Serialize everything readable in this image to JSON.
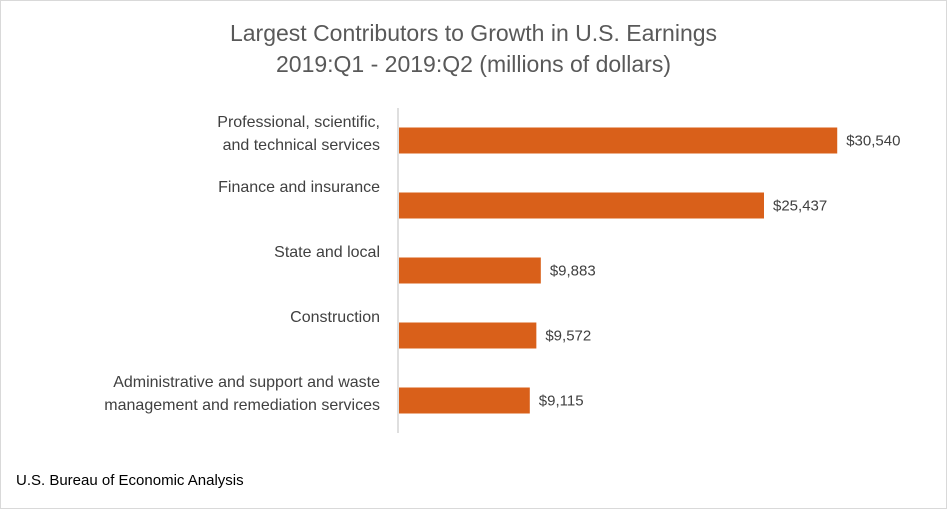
{
  "chart_data": {
    "type": "bar",
    "orientation": "horizontal",
    "title_lines": [
      "Largest Contributors to Growth in U.S. Earnings",
      "2019:Q1 - 2019:Q2 (millions of dollars)"
    ],
    "categories": [
      [
        "Professional, scientific,",
        "and technical services"
      ],
      [
        "Finance and insurance"
      ],
      [
        "State and local"
      ],
      [
        "Construction"
      ],
      [
        "Administrative and support and waste",
        "management and remediation services"
      ]
    ],
    "values": [
      30540,
      25437,
      9883,
      9572,
      9115
    ],
    "value_labels": [
      "$30,540",
      "$25,437",
      "$9,883",
      "$9,572",
      "$9,115"
    ],
    "xlim": [
      0,
      31500
    ],
    "bar_color": "#D9601A",
    "grid": false,
    "legend": "none"
  },
  "source": "U.S. Bureau of Economic Analysis"
}
